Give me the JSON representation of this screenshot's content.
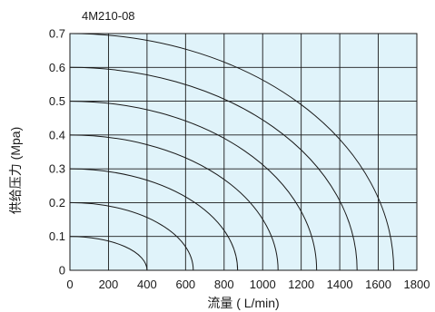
{
  "chart_data": {
    "type": "line",
    "title": "4M210-08",
    "xlabel": "流量 ( L/min)",
    "ylabel": "供给压力 (Mpa)",
    "xlim": [
      0,
      1800
    ],
    "ylim": [
      0,
      0.7
    ],
    "x_ticks": [
      "0",
      "200",
      "400",
      "600",
      "800",
      "1000",
      "1200",
      "1400",
      "1600",
      "1800"
    ],
    "y_ticks": [
      "0",
      "0.1",
      "0.2",
      "0.3",
      "0.4",
      "0.5",
      "0.6",
      "0.7"
    ],
    "grid": true,
    "background_color": "#e0f3fa",
    "line_color": "#1a1a1a",
    "series": [
      {
        "pressure": 0.1,
        "max_flow": 400
      },
      {
        "pressure": 0.2,
        "max_flow": 640
      },
      {
        "pressure": 0.3,
        "max_flow": 870
      },
      {
        "pressure": 0.4,
        "max_flow": 1080
      },
      {
        "pressure": 0.5,
        "max_flow": 1280
      },
      {
        "pressure": 0.6,
        "max_flow": 1490
      },
      {
        "pressure": 0.7,
        "max_flow": 1680
      }
    ]
  }
}
